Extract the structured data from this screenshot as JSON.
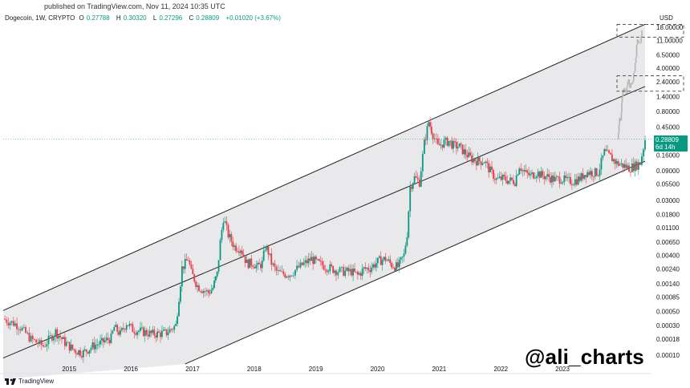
{
  "header": {
    "published": "published on TradingView.com, Nov 11, 2024 10:35 UTC",
    "symbol": "Dogecoin, 1W, CRYPTO",
    "o_label": "O",
    "o_value": "0.27788",
    "h_label": "H",
    "h_value": "0.30320",
    "l_label": "L",
    "l_value": "0.27296",
    "c_label": "C",
    "c_value": "0.28809",
    "change": "+0.01020 (+3.67%)"
  },
  "price_tag": {
    "price": "0.28809",
    "countdown": "6d 14h"
  },
  "currency": "USD",
  "watermark": "@ali_charts",
  "footer": {
    "brand": "TradingView"
  },
  "colors": {
    "up": "#089981",
    "down": "#f23645",
    "channel_fill": "#e9e9eb",
    "projection": "#b5b5b5"
  },
  "chart_data": {
    "type": "candlestick",
    "symbol": "Dogecoin",
    "interval": "1W",
    "y_scale": "log",
    "ylim": [
      0.0001,
      20
    ],
    "y_ticks": [
      "18.00000",
      "11.00000",
      "6.50000",
      "4.00000",
      "2.40000",
      "1.40000",
      "0.80000",
      "0.45000",
      "0.16000",
      "0.09000",
      "0.05500",
      "0.03000",
      "0.01800",
      "0.01100",
      "0.00650",
      "0.00400",
      "0.00240",
      "0.00140",
      "0.00085",
      "0.00050",
      "0.00030",
      "0.00018",
      "0.00010"
    ],
    "x_ticks": [
      "2015",
      "2016",
      "2017",
      "2018",
      "2019",
      "2020",
      "2021",
      "2022",
      "2023"
    ],
    "xlim": [
      2014.45,
      2024.95
    ],
    "price_points": [
      [
        2014.45,
        0.00038
      ],
      [
        2014.7,
        0.0003
      ],
      [
        2014.9,
        0.00018
      ],
      [
        2015.1,
        0.00014
      ],
      [
        2015.3,
        0.00024
      ],
      [
        2015.45,
        0.00016
      ],
      [
        2015.6,
        0.00012
      ],
      [
        2015.75,
        0.00011
      ],
      [
        2015.9,
        0.00014
      ],
      [
        2016.05,
        0.00016
      ],
      [
        2016.2,
        0.00019
      ],
      [
        2016.25,
        0.00028
      ],
      [
        2016.35,
        0.00022
      ],
      [
        2016.45,
        0.00033
      ],
      [
        2016.55,
        0.00026
      ],
      [
        2016.7,
        0.00024
      ],
      [
        2016.85,
        0.00022
      ],
      [
        2016.95,
        0.00022
      ],
      [
        2017.1,
        0.00023
      ],
      [
        2017.25,
        0.0003
      ],
      [
        2017.35,
        0.0025
      ],
      [
        2017.45,
        0.0035
      ],
      [
        2017.5,
        0.0021
      ],
      [
        2017.6,
        0.0013
      ],
      [
        2017.7,
        0.0011
      ],
      [
        2017.78,
        0.001
      ],
      [
        2017.85,
        0.0012
      ],
      [
        2017.92,
        0.002
      ],
      [
        2017.97,
        0.0065
      ],
      [
        2018.02,
        0.016
      ],
      [
        2018.1,
        0.0085
      ],
      [
        2018.2,
        0.0055
      ],
      [
        2018.3,
        0.0052
      ],
      [
        2018.4,
        0.003
      ],
      [
        2018.5,
        0.003
      ],
      [
        2018.58,
        0.0026
      ],
      [
        2018.65,
        0.003
      ],
      [
        2018.7,
        0.0055
      ],
      [
        2018.75,
        0.0045
      ],
      [
        2018.8,
        0.003
      ],
      [
        2018.88,
        0.0022
      ],
      [
        2018.97,
        0.002
      ],
      [
        2019.1,
        0.002
      ],
      [
        2019.3,
        0.0028
      ],
      [
        2019.45,
        0.0035
      ],
      [
        2019.55,
        0.003
      ],
      [
        2019.7,
        0.0026
      ],
      [
        2019.85,
        0.0023
      ],
      [
        2019.97,
        0.0022
      ],
      [
        2020.1,
        0.0022
      ],
      [
        2020.2,
        0.0019
      ],
      [
        2020.3,
        0.0024
      ],
      [
        2020.4,
        0.0025
      ],
      [
        2020.55,
        0.0033
      ],
      [
        2020.65,
        0.0035
      ],
      [
        2020.75,
        0.0028
      ],
      [
        2020.85,
        0.0026
      ],
      [
        2020.95,
        0.004
      ],
      [
        2021.0,
        0.009
      ],
      [
        2021.05,
        0.05
      ],
      [
        2021.12,
        0.07
      ],
      [
        2021.2,
        0.06
      ],
      [
        2021.28,
        0.25
      ],
      [
        2021.35,
        0.55
      ],
      [
        2021.42,
        0.35
      ],
      [
        2021.5,
        0.22
      ],
      [
        2021.6,
        0.26
      ],
      [
        2021.68,
        0.27
      ],
      [
        2021.75,
        0.23
      ],
      [
        2021.85,
        0.22
      ],
      [
        2021.95,
        0.17
      ],
      [
        2022.05,
        0.14
      ],
      [
        2022.15,
        0.13
      ],
      [
        2022.25,
        0.13
      ],
      [
        2022.35,
        0.09
      ],
      [
        2022.45,
        0.065
      ],
      [
        2022.55,
        0.068
      ],
      [
        2022.65,
        0.063
      ],
      [
        2022.75,
        0.062
      ],
      [
        2022.82,
        0.11
      ],
      [
        2022.9,
        0.085
      ],
      [
        2023.0,
        0.075
      ],
      [
        2023.1,
        0.085
      ],
      [
        2023.2,
        0.075
      ],
      [
        2023.3,
        0.072
      ],
      [
        2023.4,
        0.065
      ],
      [
        2023.5,
        0.068
      ],
      [
        2023.6,
        0.062
      ],
      [
        2023.7,
        0.062
      ],
      [
        2023.8,
        0.068
      ],
      [
        2023.9,
        0.085
      ],
      [
        2024.0,
        0.085
      ],
      [
        2024.1,
        0.085
      ],
      [
        2024.2,
        0.18
      ],
      [
        2024.3,
        0.15
      ],
      [
        2024.4,
        0.12
      ],
      [
        2024.5,
        0.11
      ],
      [
        2024.6,
        0.1
      ],
      [
        2024.7,
        0.11
      ],
      [
        2024.78,
        0.12
      ],
      [
        2024.86,
        0.28809
      ]
    ],
    "channel": {
      "upper": [
        [
          2014.45,
          0.00052
        ],
        [
          2024.95,
          22
        ]
      ],
      "middle": [
        [
          2014.45,
          9e-05
        ],
        [
          2024.95,
          2.2
        ]
      ],
      "lower": [
        [
          2017.4,
          7.2e-05
        ],
        [
          2024.95,
          0.14
        ]
      ]
    },
    "projection": [
      [
        2024.86,
        0.29
      ],
      [
        2024.9,
        0.7
      ],
      [
        2024.93,
        0.55
      ],
      [
        2024.96,
        1.5
      ],
      [
        2025.0,
        2.0
      ],
      [
        2025.05,
        1.6
      ],
      [
        2025.1,
        2.4
      ],
      [
        2025.15,
        2.0
      ],
      [
        2025.2,
        2.6
      ],
      [
        2025.25,
        5.0
      ],
      [
        2025.3,
        12
      ],
      [
        2025.35,
        9
      ],
      [
        2025.4,
        18
      ]
    ],
    "target_zones": [
      {
        "y_low": 12.5,
        "y_high": 20.0
      },
      {
        "y_low": 1.7,
        "y_high": 3.0
      }
    ]
  }
}
